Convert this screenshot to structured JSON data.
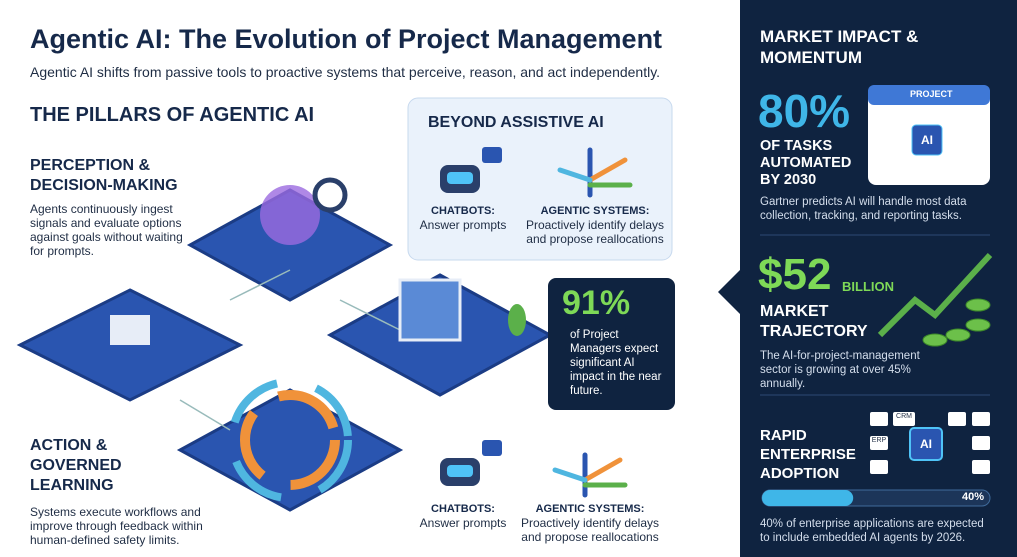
{
  "header": {
    "title": "Agentic AI: The Evolution of Project Management",
    "subtitle": "Agentic AI shifts from passive tools to proactive systems that perceive, reason, and act independently."
  },
  "pillars": {
    "heading": "THE PILLARS OF AGENTIC AI",
    "perception": {
      "title": "PERCEPTION & DECISION-MAKING",
      "text": "Agents continuously ingest signals and evaluate options against goals without waiting for prompts."
    },
    "action": {
      "title": "ACTION & GOVERNED LEARNING",
      "text": "Systems execute workflows and improve through feedback within human-defined safety limits."
    }
  },
  "beyond": {
    "heading": "BEYOND ASSISTIVE AI",
    "top": {
      "chatbots_title": "CHATBOTS:",
      "chatbots_text": "Answer prompts",
      "agentic_title": "AGENTIC SYSTEMS:",
      "agentic_text": "Proactively identify delays and propose reallocations"
    },
    "bottom": {
      "chatbots_title": "CHATBOTS:",
      "chatbots_text": "Answer prompts",
      "agentic_title": "AGENTIC SYSTEMS:",
      "agentic_text": "Proactively identify delays and propose reallocations"
    }
  },
  "survey": {
    "value": "91%",
    "text": "of Project Managers expect significant AI impact in the near future."
  },
  "market": {
    "heading": "MARKET IMPACT & MOMENTUM",
    "automation": {
      "value": "80%",
      "label": "OF TASKS AUTOMATED BY 2030",
      "text": "Gartner predicts AI will handle most data collection, tracking, and reporting tasks.",
      "calendar_label": "PROJECT",
      "chip": "AI"
    },
    "trajectory": {
      "value": "$52",
      "unit": "BILLION",
      "label": "MARKET TRAJECTORY",
      "text": "The AI-for-project-management sector is growing at over 45% annually."
    },
    "adoption": {
      "label": "RAPID ENTERPRISE ADOPTION",
      "progress": 40,
      "progress_label": "40%",
      "text": "40% of enterprise applications are expected to include embedded AI agents by 2026.",
      "chip": "AI",
      "icon_crm": "CRM",
      "icon_erp": "ERP"
    }
  }
}
